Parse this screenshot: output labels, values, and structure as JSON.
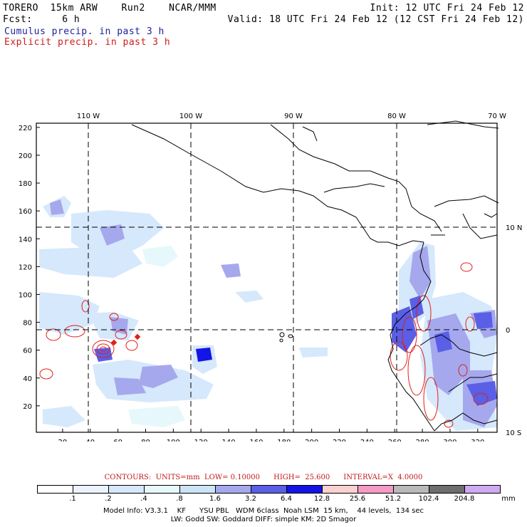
{
  "header": {
    "line1_left": "TORERO  15km ARW    Run2    NCAR/MMM",
    "line1_right": "Init: 12 UTC Fri 24 Feb 12",
    "line2_left": "Fcst:     6 h",
    "line2_right": "Valid: 18 UTC Fri 24 Feb 12 (12 CST Fri 24 Feb 12)",
    "line3": "Cumulus precip. in past 3 h",
    "line4": "Explicit precip. in past 3 h"
  },
  "map": {
    "lon_labels": [
      "110 W",
      "100 W",
      "90 W",
      "80 W",
      "70 W"
    ],
    "lat_labels": [
      "10 N",
      "0",
      "10 S"
    ],
    "x_ticks": [
      "20",
      "40",
      "60",
      "80",
      "100",
      "120",
      "140",
      "160",
      "180",
      "200",
      "220",
      "240",
      "260",
      "280",
      "300",
      "320"
    ],
    "y_ticks": [
      "20",
      "40",
      "60",
      "80",
      "100",
      "120",
      "140",
      "160",
      "180",
      "200",
      "220"
    ],
    "x_range": [
      1,
      334
    ],
    "y_range": [
      1,
      223
    ],
    "land_color": "#000000",
    "grid_style": "dashed"
  },
  "contour_summary": {
    "units": "CONTOURS:  UNITS=mm  LOW= 0.10000",
    "high": "HIGH=  25.600",
    "interval": "INTERVAL=X  4.0000"
  },
  "colorbar": {
    "unit": "mm",
    "labels": [
      ".1",
      ".2",
      ".4",
      ".8",
      "1.6",
      "3.2",
      "6.4",
      "12.8",
      "25.6",
      "51.2",
      "102.4",
      "204.8"
    ],
    "colors": [
      "#ffffff",
      "#ecf3fd",
      "#d6e8fb",
      "#e6f8fb",
      "#cde3f6",
      "#a6a8ee",
      "#5a5fe6",
      "#1414e6",
      "#fad0d0",
      "#f59ac4",
      "#b9b9b9",
      "#6e6e6e",
      "#ceaaf2"
    ]
  },
  "footer": {
    "line1": "Model Info: V3.3.1    KF      YSU PBL   WDM 6class  Noah LSM  15 km,    44 levels,  134 sec",
    "line2": "LW: Godd SW: Goddard DIFF: simple KM: 2D Smagor"
  }
}
